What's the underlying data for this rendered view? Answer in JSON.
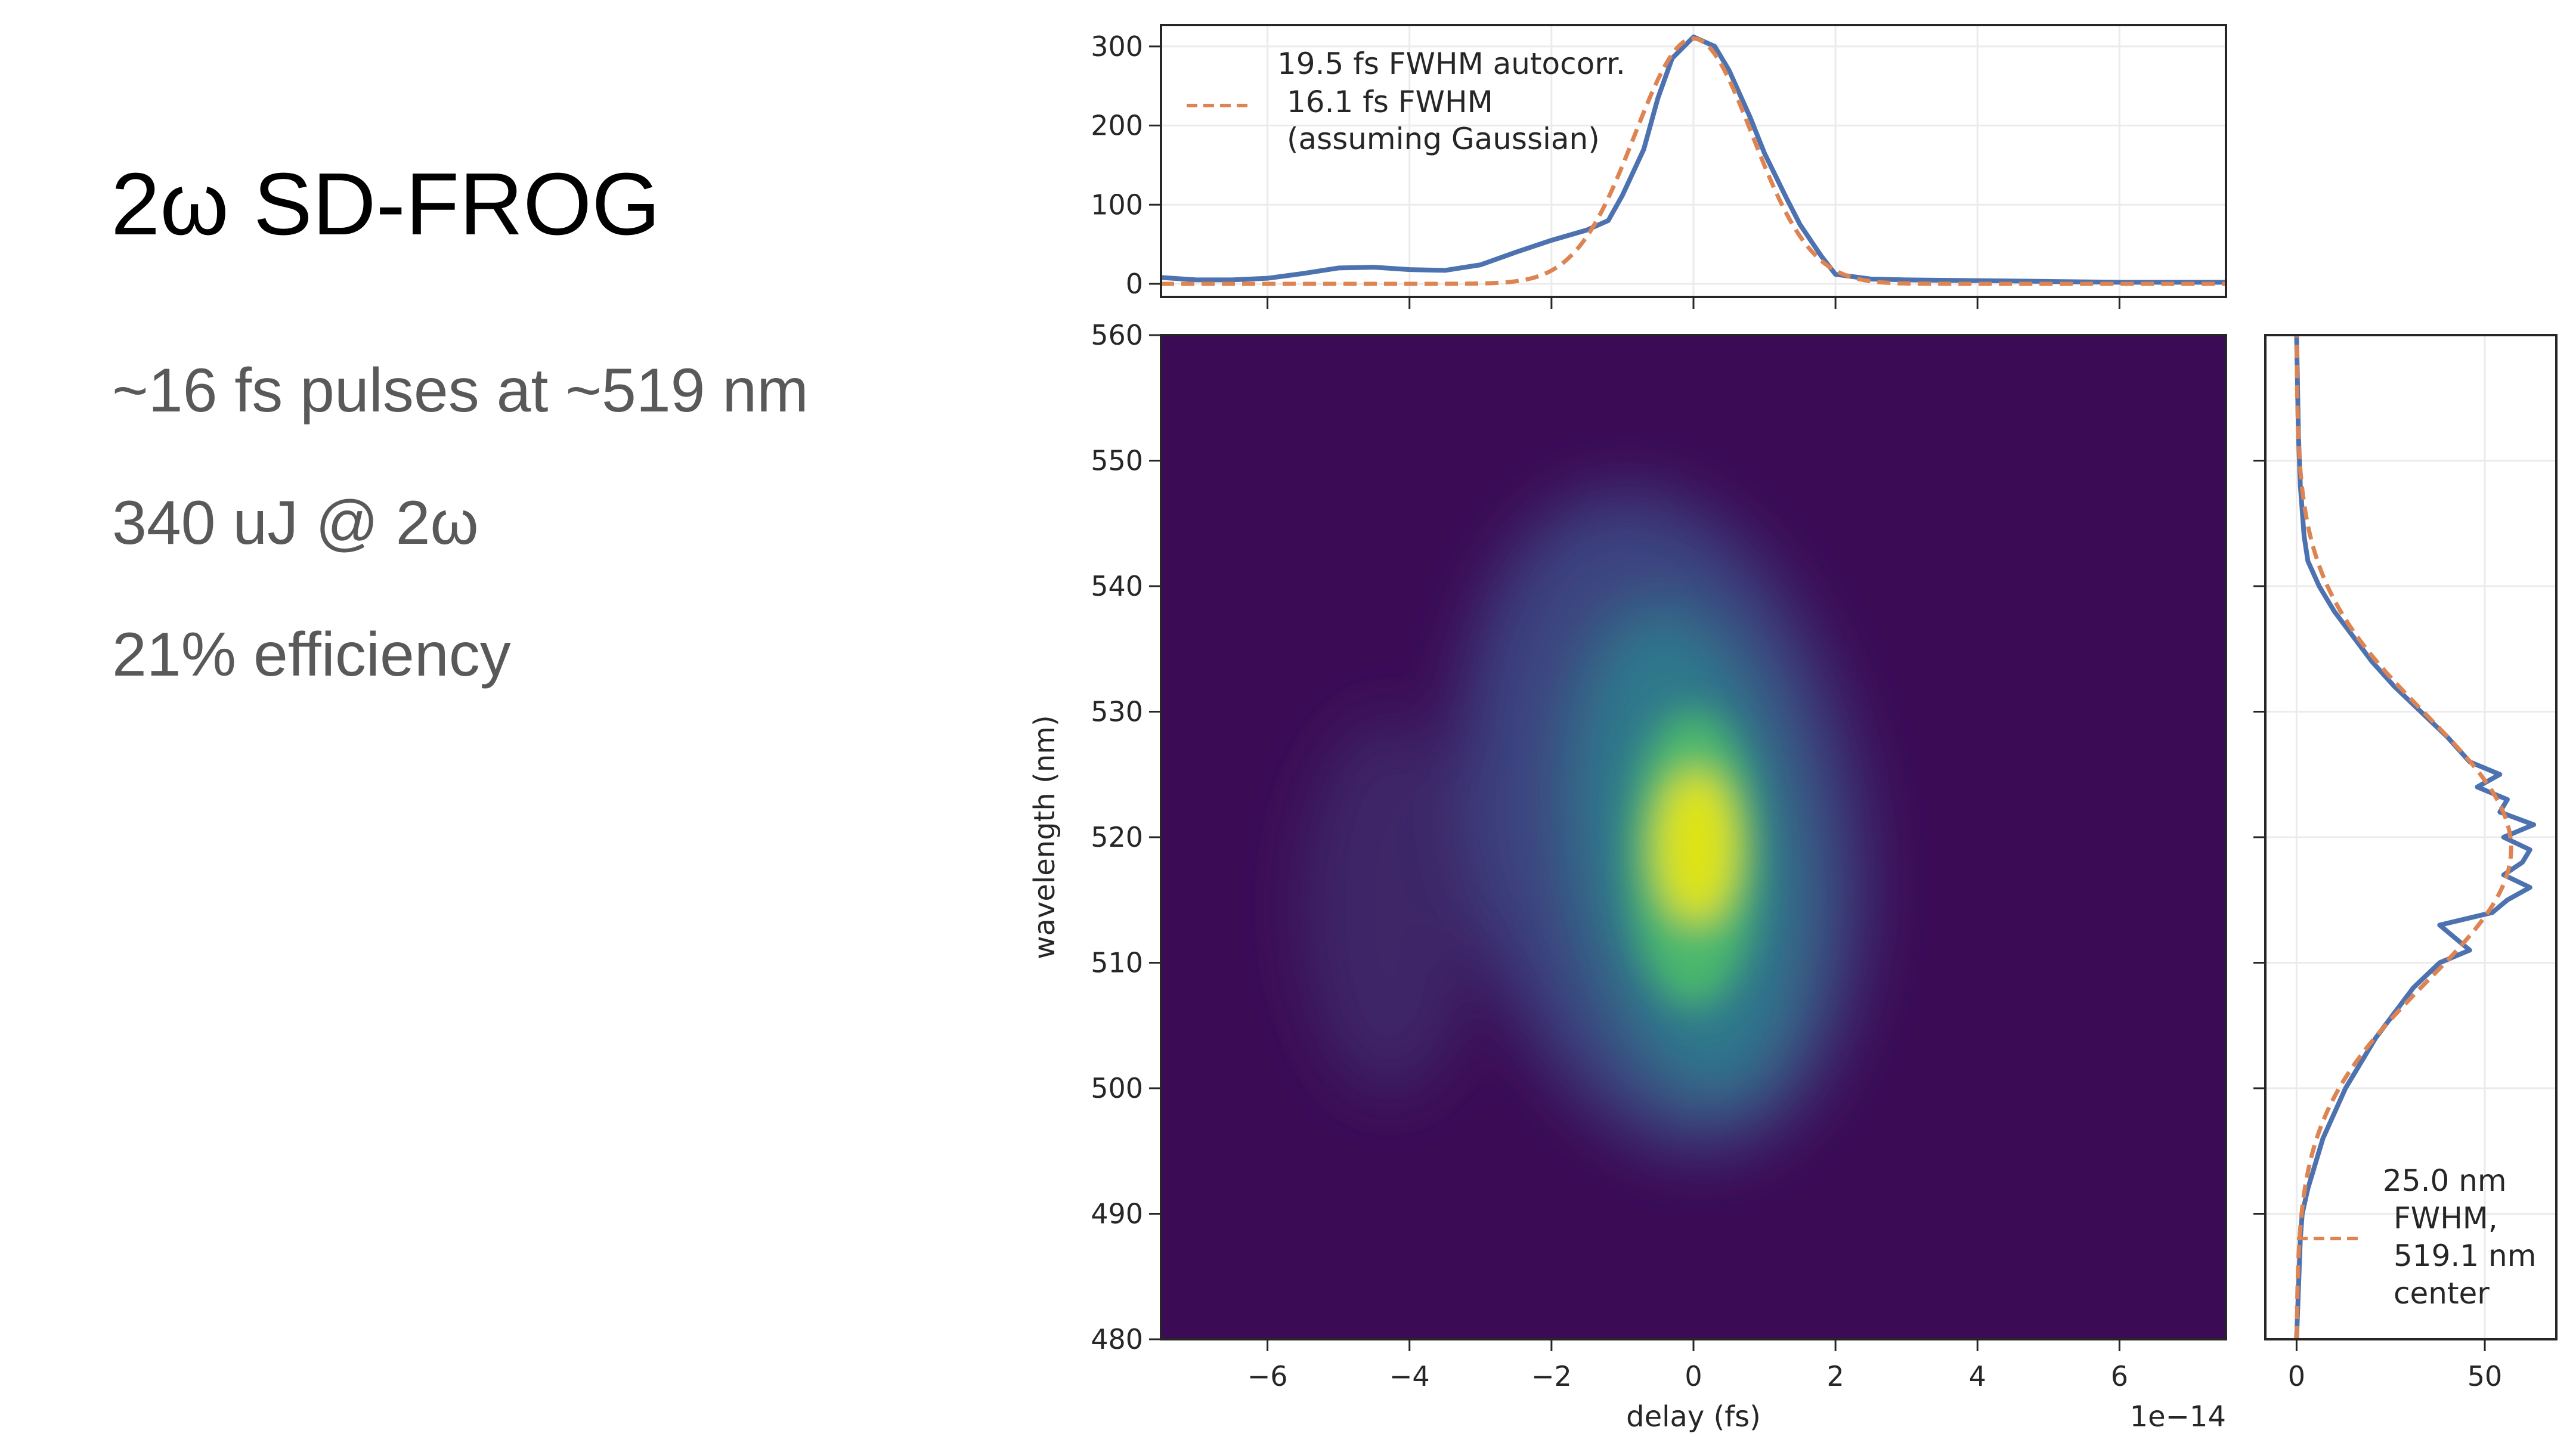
{
  "slide": {
    "title": "2ω SD-FROG",
    "bullets": [
      "~16 fs pulses at ~519 nm",
      "340 uJ @ 2ω",
      "21% efficiency"
    ]
  },
  "colors": {
    "measured": "#4c72b0",
    "fit": "#dd8452",
    "heatmap_bg": "#3b0b55",
    "text": "#595959"
  },
  "chart_data": [
    {
      "type": "line",
      "name": "autocorrelation",
      "xlabel": "",
      "ylabel": "",
      "xlim": [
        -7.5,
        7.5
      ],
      "ylim": [
        -16.6,
        327
      ],
      "x_ticks": [
        -6,
        -4,
        -2,
        0,
        2,
        4,
        6
      ],
      "y_ticks": [
        "0",
        "100",
        "200",
        "300"
      ],
      "grid": true,
      "legend_placement": "top-left",
      "legend": [
        "19.5 fs FWHM autocorr.",
        "16.1 fs FWHM",
        "(assuming Gaussian)"
      ],
      "series": [
        {
          "name": "measured",
          "x": [
            -7.5,
            -7,
            -6.5,
            -6,
            -5.5,
            -5,
            -4.5,
            -4,
            -3.5,
            -3,
            -2.5,
            -2,
            -1.5,
            -1.2,
            -1,
            -0.7,
            -0.5,
            -0.3,
            0,
            0.3,
            0.5,
            0.8,
            1,
            1.3,
            1.5,
            1.8,
            2,
            2.5,
            3,
            4,
            5,
            6,
            7.5
          ],
          "y": [
            8,
            5,
            5,
            7,
            13,
            20,
            21,
            18,
            17,
            24,
            40,
            55,
            68,
            80,
            112,
            170,
            235,
            285,
            312,
            300,
            270,
            210,
            165,
            110,
            75,
            35,
            12,
            6,
            5,
            4,
            3,
            2,
            2
          ]
        },
        {
          "name": "gaussian fit",
          "amplitude": 310,
          "center": 0,
          "fwhm": 1.95
        }
      ]
    },
    {
      "type": "heatmap",
      "name": "FROG trace",
      "xlabel": "delay (fs)",
      "ylabel": "wavelength (nm)",
      "x_scale_label": "1e−14",
      "xlim": [
        -7.5,
        7.5
      ],
      "ylim": [
        480,
        560
      ],
      "x_ticks": [
        "−6",
        "−4",
        "−2",
        "0",
        "2",
        "4",
        "6"
      ],
      "y_ticks": [
        "480",
        "490",
        "500",
        "510",
        "520",
        "530",
        "540",
        "550",
        "560"
      ],
      "colormap": "viridis",
      "peak": {
        "delay": 0,
        "wavelength": 519
      }
    },
    {
      "type": "line",
      "name": "spectrum",
      "xlim": [
        -8.3,
        69
      ],
      "ylim": [
        480,
        560
      ],
      "x_ticks": [
        "0",
        "50"
      ],
      "y_ticks": [
        490,
        500,
        510,
        520,
        530,
        540,
        550
      ],
      "grid": true,
      "legend_placement": "bottom-right",
      "legend": [
        "25.0 nm",
        "FWHM,",
        "519.1 nm",
        "center"
      ],
      "series": [
        {
          "name": "measured",
          "wavelength": [
            480,
            484,
            488,
            490,
            492,
            494,
            496,
            498,
            500,
            502,
            504,
            506,
            508,
            510,
            511,
            512,
            513,
            514,
            515,
            516,
            517,
            518,
            519,
            520,
            521,
            522,
            523,
            524,
            525,
            526,
            528,
            530,
            532,
            534,
            536,
            538,
            540,
            542,
            544,
            548,
            552,
            560
          ],
          "value": [
            0,
            0.5,
            1,
            1.5,
            3,
            5,
            7,
            10,
            13,
            17,
            21,
            26,
            31,
            38,
            46,
            42,
            38,
            52,
            56,
            62,
            55,
            60,
            62,
            55,
            63,
            54,
            56,
            48,
            54,
            46,
            40,
            33,
            26,
            20,
            15,
            10,
            6,
            3,
            2,
            1,
            0.5,
            0
          ]
        },
        {
          "name": "gaussian fit",
          "amplitude": 57,
          "center": 519.1,
          "fwhm": 25.0
        }
      ]
    }
  ]
}
